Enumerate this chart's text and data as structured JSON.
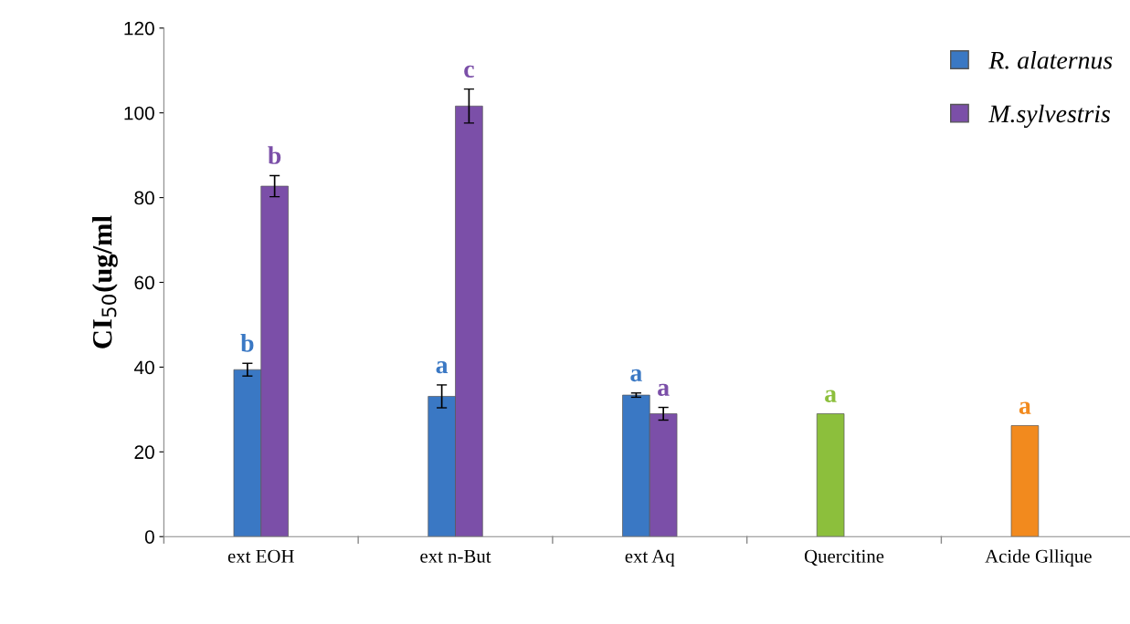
{
  "chart_data": {
    "type": "bar",
    "ylabel": "CI$_{50}$(ug/ml",
    "categories": [
      "ext EOH",
      "ext n-But",
      "ext Aq",
      "Quercitine",
      "Acide Gllique"
    ],
    "series": [
      {
        "name": "R. alaternus",
        "color": "#3a78c4",
        "colors": [
          "#3a78c4",
          "#3a78c4",
          "#3a78c4",
          "#8cbf3c",
          "#f28a1e"
        ],
        "values": [
          39.4,
          33.1,
          33.4,
          29.0,
          26.2
        ],
        "errors": [
          1.5,
          2.7,
          0.5,
          null,
          null
        ],
        "value_labels": [
          "b",
          "a",
          "a",
          "a",
          "a"
        ]
      },
      {
        "name": "M.sylvestris",
        "color": "#7b4fa8",
        "values": [
          82.7,
          101.6,
          29.0,
          null,
          null
        ],
        "errors": [
          2.5,
          4.0,
          1.5,
          null,
          null
        ],
        "value_labels": [
          "b",
          "c",
          "a",
          null,
          null
        ]
      }
    ],
    "ylim": [
      0,
      120
    ],
    "yticks": [
      0,
      20,
      40,
      60,
      80,
      100,
      120
    ],
    "grid": false,
    "legend": "top right"
  }
}
